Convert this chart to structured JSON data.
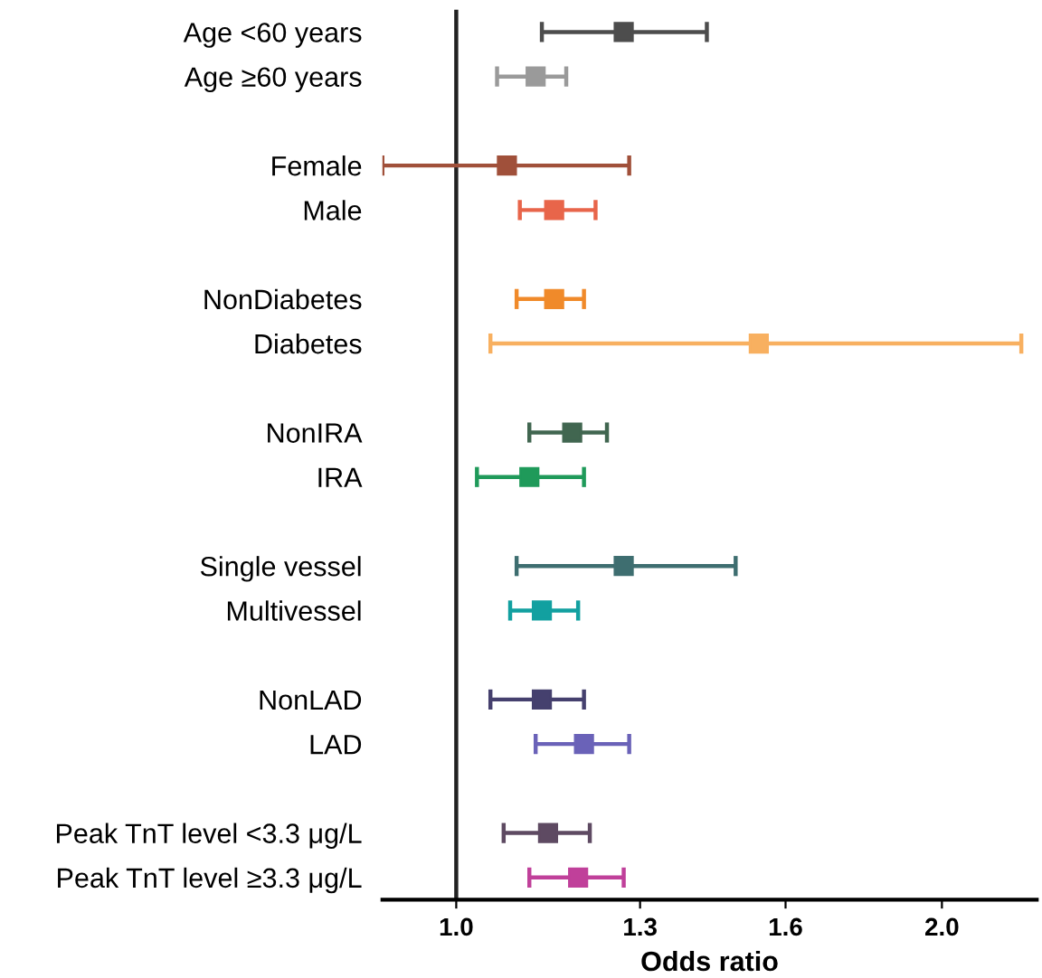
{
  "chart_data": {
    "type": "scatter",
    "orientation": "horizontal",
    "xlabel": "Odds ratio",
    "log": "x",
    "categories": [
      "Age <60 years",
      "Age ≥60 years",
      null,
      "Female",
      "Male",
      null,
      "NonDiabetes",
      "Diabetes",
      null,
      "NonIRA",
      "IRA",
      null,
      "Single vessel",
      "Multivessel",
      null,
      "NonLAD",
      "LAD",
      null,
      "Peak TnT level <3.3 μg/L",
      "Peak TnT level ≥3.3 μg/L"
    ],
    "values": [
      1.27,
      1.12,
      null,
      1.075,
      1.15,
      null,
      1.15,
      1.54,
      null,
      1.18,
      1.11,
      null,
      1.27,
      1.13,
      null,
      1.13,
      1.2,
      null,
      1.14,
      1.19
    ],
    "errors": [
      [
        1.13,
        1.43
      ],
      [
        1.06,
        1.17
      ],
      null,
      [
        0.9,
        1.28
      ],
      [
        1.095,
        1.22
      ],
      null,
      [
        1.09,
        1.2
      ],
      [
        1.05,
        2.24
      ],
      null,
      [
        1.11,
        1.24
      ],
      [
        1.03,
        1.2
      ],
      null,
      [
        1.09,
        1.49
      ],
      [
        1.08,
        1.19
      ],
      null,
      [
        1.05,
        1.2
      ],
      [
        1.12,
        1.28
      ],
      null,
      [
        1.07,
        1.21
      ],
      [
        1.11,
        1.27
      ]
    ],
    "colors": [
      "#4d4d4d",
      "#9a9a9a",
      null,
      "#a0503a",
      "#e8654a",
      null,
      "#f08a2a",
      "#f8b060",
      null,
      "#416650",
      "#1f9a5a",
      null,
      "#3e6e70",
      "#12a0a0",
      null,
      "#45406e",
      "#6a62b8",
      null,
      "#5e4a62",
      "#c0409a"
    ],
    "marker": "square",
    "xlim": [
      0.9,
      2.29
    ],
    "xticks": [
      {
        "value": 1,
        "label": "1.0"
      },
      1.3,
      1.6,
      {
        "value": 2,
        "label": "2.0"
      }
    ],
    "ref_lines": [
      {
        "axis": "x",
        "value": 1.0,
        "color": "#222222"
      }
    ],
    "grid": false,
    "legend": false
  }
}
